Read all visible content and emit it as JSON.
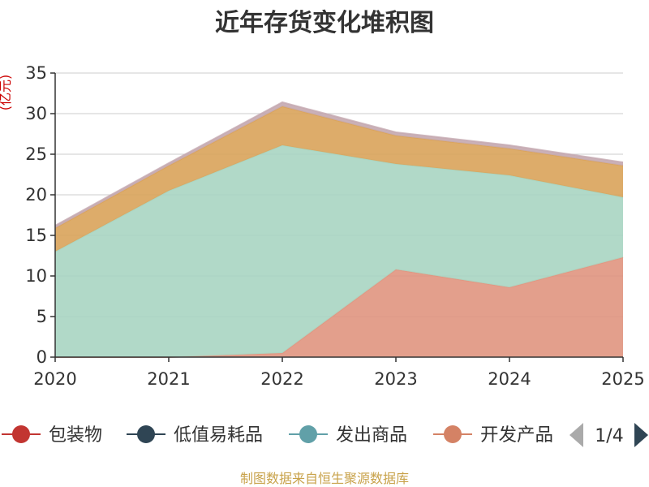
{
  "chart_data": {
    "type": "area",
    "stacked": true,
    "title": "近年存货变化堆积图",
    "ylabel": "(亿元)",
    "x": [
      "2020",
      "2021",
      "2022",
      "2023",
      "2024",
      "2025"
    ],
    "ylim": [
      0,
      35
    ],
    "yticks": [
      0,
      5,
      10,
      15,
      20,
      25,
      30,
      35
    ],
    "grid": true,
    "legend_position": "bottom",
    "series": [
      {
        "name": "开发产品",
        "color": "#e0957f",
        "values": [
          0,
          0,
          0.5,
          10.8,
          8.6,
          12.3
        ]
      },
      {
        "name": "发出商品",
        "color": "#a8d5c2",
        "values": [
          13.0,
          20.5,
          25.6,
          13.0,
          13.8,
          7.4
        ]
      },
      {
        "name": "",
        "color": "#d9a35a",
        "values": [
          2.9,
          3.1,
          4.8,
          3.5,
          3.3,
          3.9
        ]
      },
      {
        "name": "",
        "color": "#c4a9b0",
        "values": [
          0.3,
          0.3,
          0.5,
          0.4,
          0.4,
          0.4
        ]
      }
    ],
    "legend": [
      {
        "name": "包装物",
        "color": "#c23531"
      },
      {
        "name": "低值易耗品",
        "color": "#2f4554"
      },
      {
        "name": "发出商品",
        "color": "#61a0a8"
      },
      {
        "name": "开发产品",
        "color": "#d48265"
      }
    ],
    "pager": "1/4",
    "source": "制图数据来自恒生聚源数据库"
  }
}
